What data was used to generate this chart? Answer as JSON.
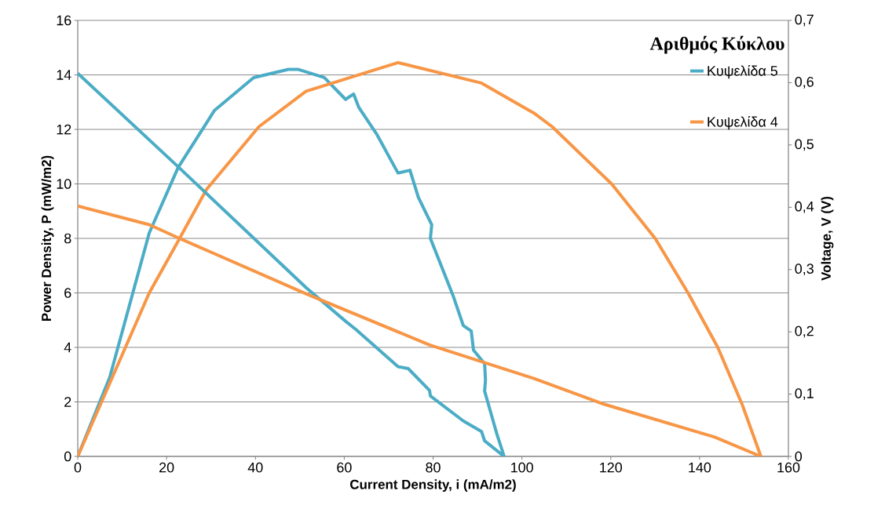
{
  "chart_data": {
    "type": "line",
    "xlabel": "Current Density, i (mA/m2)",
    "ylabel": "Power Density, P (mW/m2)",
    "y2label": "Voltage, V (V)",
    "legend_title": "Αριθμός Κύκλου",
    "xlim": [
      0,
      160
    ],
    "xticks": [
      0,
      20,
      40,
      60,
      80,
      100,
      120,
      140,
      160
    ],
    "ylim": [
      0,
      16
    ],
    "yticks": [
      0,
      2,
      4,
      6,
      8,
      10,
      12,
      14,
      16
    ],
    "y2lim": [
      0,
      0.7
    ],
    "y2ticks": [
      {
        "value": 0,
        "label": "0"
      },
      {
        "value": 0.1,
        "label": "0,1"
      },
      {
        "value": 0.2,
        "label": "0,2"
      },
      {
        "value": 0.3,
        "label": "0,3"
      },
      {
        "value": 0.4,
        "label": "0,4"
      },
      {
        "value": 0.5,
        "label": "0,5"
      },
      {
        "value": 0.6,
        "label": "0,6"
      },
      {
        "value": 0.7,
        "label": "0,7"
      }
    ],
    "grid": "y",
    "legend": "top right",
    "line_style": "solid",
    "series": [
      {
        "name": "Κυψελίδα 5",
        "color": "#4bacc6",
        "x": [
          0,
          7.2,
          16.1,
          22.6,
          30.8,
          39.6,
          47.4,
          49.7,
          55.5,
          60.3,
          62.1,
          63.3,
          67.4,
          72.1,
          74.8,
          76.7,
          79.7,
          79.4,
          84.5,
          86.8,
          88.6,
          89.1,
          91.6,
          91.8,
          91.6,
          94.4,
          96
        ],
        "values": [
          0,
          2.9,
          8.2,
          10.6,
          12.7,
          13.9,
          14.2,
          14.2,
          13.9,
          13.1,
          13.3,
          12.8,
          11.8,
          10.4,
          10.5,
          9.5,
          8.5,
          8.0,
          5.9,
          4.8,
          4.6,
          3.9,
          3.4,
          2.8,
          2.4,
          0.8,
          0
        ]
      },
      {
        "name": "Κυψελίδα 4",
        "color": "#f79646",
        "x": [
          0,
          16.1,
          22.6,
          29,
          40.8,
          51.4,
          72.1,
          90.9,
          102.7,
          106.8,
          120.2,
          130,
          137.4,
          144.1,
          149.6,
          153.8
        ],
        "values": [
          0,
          6.0,
          7.9,
          9.8,
          12.1,
          13.4,
          14.45,
          13.7,
          12.6,
          12.1,
          10.0,
          8.0,
          6.0,
          4.0,
          1.9,
          0
        ]
      },
      {
        "color": "#4bacc6",
        "axis": "y2",
        "x": [
          0,
          22.6,
          51.4,
          60.3,
          62.6,
          72.1,
          74.4,
          79.2,
          79.4,
          86.8,
          90.9,
          91.6,
          96
        ],
        "values": [
          0.615,
          0.465,
          0.271,
          0.217,
          0.204,
          0.144,
          0.141,
          0.106,
          0.097,
          0.057,
          0.04,
          0.025,
          0
        ]
      },
      {
        "color": "#f79646",
        "axis": "y2",
        "x": [
          0,
          16.1,
          22.6,
          51.4,
          79.2,
          102.7,
          118.4,
          143.4,
          153.8
        ],
        "values": [
          0.402,
          0.372,
          0.351,
          0.261,
          0.179,
          0.125,
          0.084,
          0.031,
          0
        ]
      }
    ]
  }
}
